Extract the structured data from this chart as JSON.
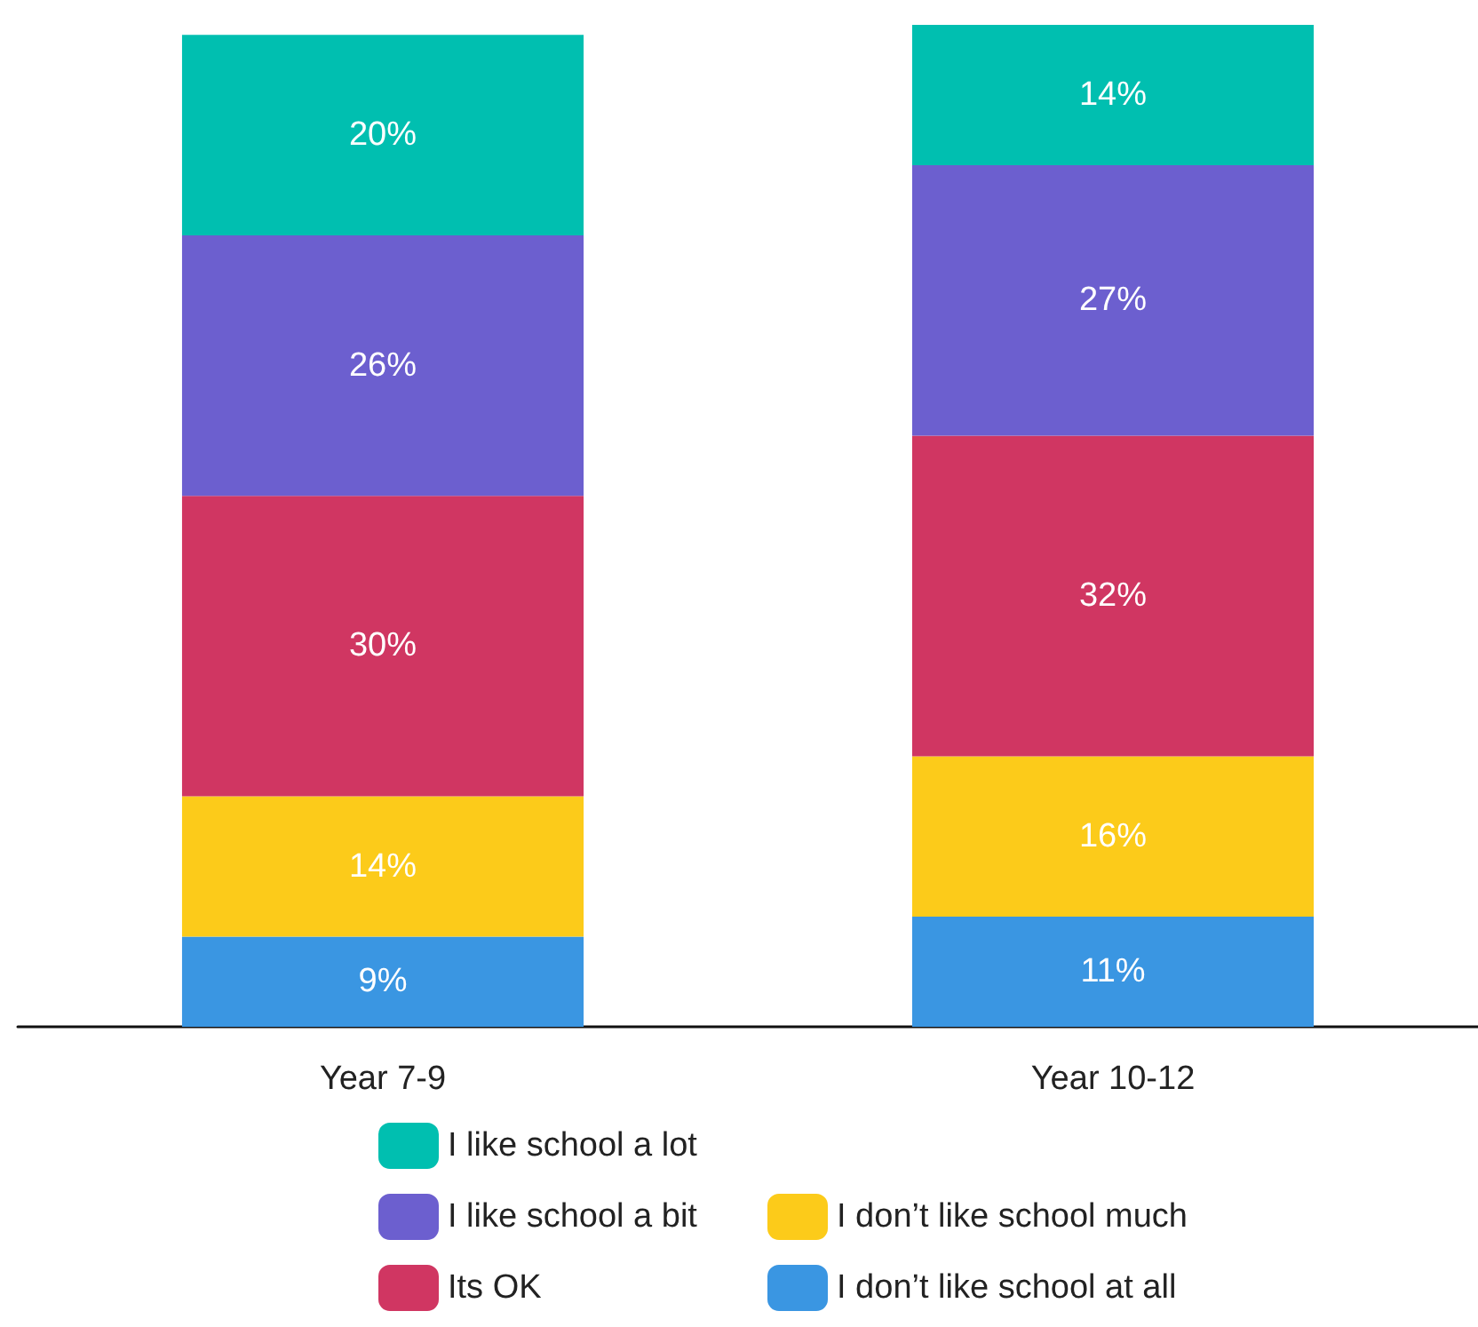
{
  "chart_data": {
    "type": "bar",
    "stacked": true,
    "categories": [
      "Year 7-9",
      "Year 10-12"
    ],
    "legend": "bottom",
    "series": [
      {
        "name": "I don’t like school at all",
        "color": "#3a96e2",
        "values": [
          9,
          11
        ],
        "value_labels": [
          "9%",
          "11%"
        ]
      },
      {
        "name": "I don’t like school much",
        "color": "#fccb1a",
        "values": [
          14,
          16
        ],
        "value_labels": [
          "14%",
          "16%"
        ]
      },
      {
        "name": "Its OK",
        "color": "#d03662",
        "values": [
          30,
          32
        ],
        "value_labels": [
          "30%",
          "32%"
        ]
      },
      {
        "name": "I like school a bit",
        "color": "#6c5fcf",
        "values": [
          26,
          27
        ],
        "value_labels": [
          "26%",
          "27%"
        ]
      },
      {
        "name": "I like school a lot",
        "color": "#00bfb0",
        "values": [
          20,
          14
        ],
        "value_labels": [
          "20%",
          "14%"
        ]
      }
    ]
  }
}
